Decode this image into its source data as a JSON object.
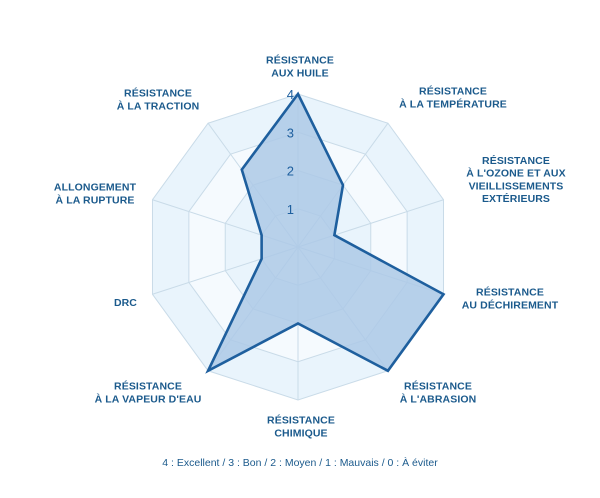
{
  "chart_data": {
    "type": "radar",
    "scale": {
      "min": 0,
      "max": 4,
      "ticks": [
        "1",
        "2",
        "3",
        "4"
      ]
    },
    "axes": [
      [
        "RÉSISTANCE",
        "AUX HUILE"
      ],
      [
        "RÉSISTANCE",
        "À LA TEMPÉRATURE"
      ],
      [
        "RÉSISTANCE",
        "À L'OZONE ET AUX",
        "VIEILLISSEMENTS",
        "EXTÉRIEURS"
      ],
      [
        "RÉSISTANCE",
        "AU DÉCHIREMENT"
      ],
      [
        "RÉSISTANCE",
        "À L'ABRASION"
      ],
      [
        "RÉSISTANCE",
        "CHIMIQUE"
      ],
      [
        "RÉSISTANCE",
        "À LA VAPEUR D'EAU"
      ],
      [
        "DRC"
      ],
      [
        "ALLONGEMENT",
        "À LA RUPTURE"
      ],
      [
        "RÉSISTANCE",
        "À LA TRACTION"
      ]
    ],
    "values": [
      4,
      2,
      1,
      4,
      4,
      2,
      4,
      1,
      1,
      2.5
    ],
    "legend": "4 : Excellent / 3 : Bon / 2 :  Moyen / 1 : Mauvais / 0 : À éviter",
    "grid": true,
    "colors": {
      "ring_fill_outer": "#e9f4fc",
      "ring_fill_inner": "#f5fafe",
      "grid_line": "#c9dbe8",
      "series_fill": "#adc9e6",
      "series_stroke": "#1e5f9e",
      "label_text": "#1b5a8c",
      "tick_text": "#1e5f9e"
    }
  }
}
